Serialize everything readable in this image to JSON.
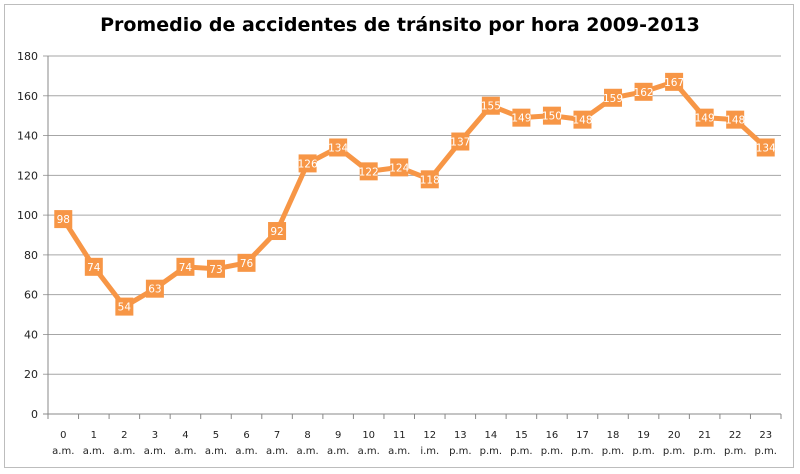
{
  "chart_data": {
    "type": "line",
    "title": "Promedio de accidentes de tránsito por hora 2009-2013",
    "xlabel": "",
    "ylabel": "",
    "ylim": [
      0,
      180
    ],
    "yticks": [
      0,
      20,
      40,
      60,
      80,
      100,
      120,
      140,
      160,
      180
    ],
    "grid": true,
    "legend": "none",
    "categories": [
      {
        "hour": "0",
        "period": "a.m."
      },
      {
        "hour": "1",
        "period": "a.m."
      },
      {
        "hour": "2",
        "period": "a.m."
      },
      {
        "hour": "3",
        "period": "a.m."
      },
      {
        "hour": "4",
        "period": "a.m."
      },
      {
        "hour": "5",
        "period": "a.m."
      },
      {
        "hour": "6",
        "period": "a.m."
      },
      {
        "hour": "7",
        "period": "a.m."
      },
      {
        "hour": "8",
        "period": "a.m."
      },
      {
        "hour": "9",
        "period": "a.m."
      },
      {
        "hour": "10",
        "period": "a.m."
      },
      {
        "hour": "11",
        "period": "a.m."
      },
      {
        "hour": "12",
        "period": "i.m."
      },
      {
        "hour": "13",
        "period": "p.m."
      },
      {
        "hour": "14",
        "period": "p.m."
      },
      {
        "hour": "15",
        "period": "p.m."
      },
      {
        "hour": "16",
        "period": "p.m."
      },
      {
        "hour": "17",
        "period": "p.m."
      },
      {
        "hour": "18",
        "period": "p.m."
      },
      {
        "hour": "19",
        "period": "p.m."
      },
      {
        "hour": "20",
        "period": "p.m."
      },
      {
        "hour": "21",
        "period": "p.m."
      },
      {
        "hour": "22",
        "period": "p.m."
      },
      {
        "hour": "23",
        "period": "p.m."
      }
    ],
    "series": [
      {
        "name": "Promedio",
        "color": "#f79646",
        "values": [
          98,
          74,
          54,
          63,
          74,
          73,
          76,
          92,
          126,
          134,
          122,
          124,
          118,
          137,
          155,
          149,
          150,
          148,
          159,
          162,
          167,
          149,
          148,
          134
        ]
      }
    ]
  }
}
